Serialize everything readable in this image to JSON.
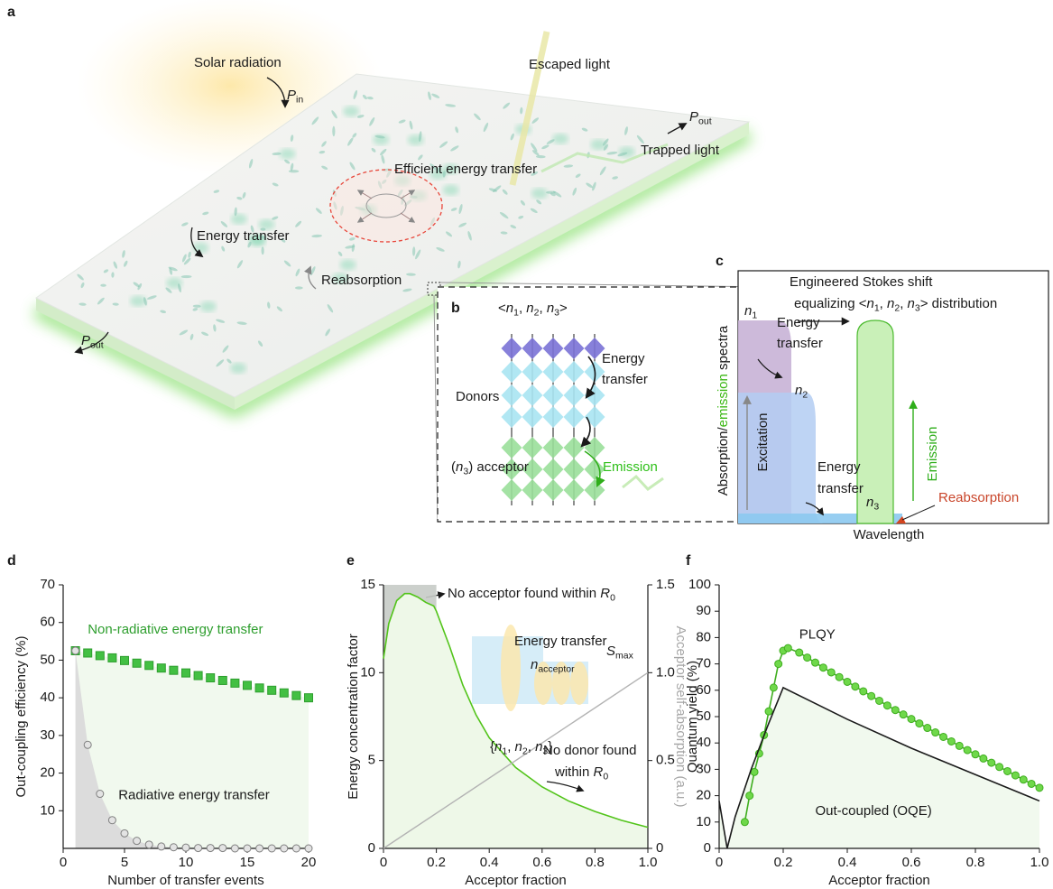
{
  "panel_a": {
    "label": "a",
    "solar_radiation": "Solar radiation",
    "p_in": [
      {
        "text": "P",
        "italic": true
      },
      {
        "text": "in",
        "sub": true
      }
    ],
    "escaped_light": "Escaped light",
    "p_out_right": [
      {
        "text": "P",
        "italic": true
      },
      {
        "text": "out",
        "sub": true
      }
    ],
    "trapped_light": "Trapped light",
    "efficient_energy_transfer": "Efficient energy transfer",
    "energy_transfer": "Energy transfer",
    "reabsorption": "Reabsorption",
    "p_out_left": [
      {
        "text": "P",
        "italic": true
      },
      {
        "text": "out",
        "sub": true
      }
    ]
  },
  "panel_b": {
    "label": "b",
    "title": [
      {
        "text": "<"
      },
      {
        "text": "n",
        "italic": true
      },
      {
        "text": "1",
        "sub": true
      },
      {
        "text": ", "
      },
      {
        "text": "n",
        "italic": true
      },
      {
        "text": "2",
        "sub": true
      },
      {
        "text": ", "
      },
      {
        "text": "n",
        "italic": true
      },
      {
        "text": "3",
        "sub": true
      },
      {
        "text": ">"
      }
    ],
    "donors": "Donors",
    "energy_transfer": [
      "Energy",
      "transfer"
    ],
    "acceptor": [
      {
        "text": "("
      },
      {
        "text": "n",
        "italic": true
      },
      {
        "text": "3",
        "sub": true
      },
      {
        "text": ") acceptor"
      }
    ],
    "emission": "Emission"
  },
  "panel_c": {
    "label": "c",
    "title_lines": [
      "Engineered Stokes shift",
      [
        {
          "text": "equalizing <"
        },
        {
          "text": "n",
          "italic": true
        },
        {
          "text": "1",
          "sub": true
        },
        {
          "text": ", "
        },
        {
          "text": "n",
          "italic": true
        },
        {
          "text": "2",
          "sub": true
        },
        {
          "text": ", "
        },
        {
          "text": "n",
          "italic": true
        },
        {
          "text": "3",
          "sub": true
        },
        {
          "text": "> distribution"
        }
      ]
    ],
    "y_label": [
      {
        "text": "Absorption/"
      },
      {
        "text": "emission",
        "color": "#3cb815"
      },
      {
        "text": " spectra"
      }
    ],
    "x_label": "Wavelength",
    "n1": [
      {
        "text": "n",
        "italic": true
      },
      {
        "text": "1",
        "sub": true
      }
    ],
    "n2": [
      {
        "text": "n",
        "italic": true
      },
      {
        "text": "2",
        "sub": true
      }
    ],
    "n3": [
      {
        "text": "n",
        "italic": true
      },
      {
        "text": "3",
        "sub": true
      }
    ],
    "energy_transfer_1": [
      "Energy",
      "transfer"
    ],
    "energy_transfer_2": [
      "Energy",
      "transfer"
    ],
    "excitation": "Excitation",
    "emission": "Emission",
    "reabsorption": "Reabsorption"
  },
  "chart_data": [
    {
      "type": "scatter",
      "panel_label": "d",
      "x_label": "Number of transfer events",
      "y_label": "Out-coupling efficiency (%)",
      "xlim": [
        0,
        20
      ],
      "xticks": [
        0,
        5,
        10,
        15,
        20
      ],
      "ylim": [
        0,
        70
      ],
      "yticks": [
        10,
        20,
        30,
        40,
        50,
        60,
        70
      ],
      "series": [
        {
          "name": "Non-radiative energy transfer",
          "color": "#2e9e2e",
          "marker_fill": "#43c043",
          "fill": "#f1f9ee",
          "marker": "square",
          "x": [
            1,
            2,
            3,
            4,
            5,
            6,
            7,
            8,
            9,
            10,
            11,
            12,
            13,
            14,
            15,
            16,
            17,
            18,
            19,
            20
          ],
          "values": [
            52.5,
            51.9,
            51.2,
            50.6,
            49.9,
            49.2,
            48.6,
            47.9,
            47.3,
            46.6,
            45.9,
            45.3,
            44.6,
            43.9,
            43.3,
            42.6,
            42.0,
            41.3,
            40.6,
            40.0
          ]
        },
        {
          "name": "Radiative energy transfer",
          "color": "#7f7f7f",
          "marker_fill": "#e3e3e3",
          "fill": "#dcdcdc",
          "marker": "circle",
          "x": [
            1,
            2,
            3,
            4,
            5,
            6,
            7,
            8,
            9,
            10,
            11,
            12,
            13,
            14,
            15,
            16,
            17,
            18,
            19,
            20
          ],
          "values": [
            52.5,
            27.5,
            14.5,
            7.5,
            4,
            2,
            1,
            0.5,
            0.3,
            0.2,
            0.1,
            0.1,
            0.1,
            0,
            0,
            0,
            0,
            0,
            0,
            0
          ]
        }
      ]
    },
    {
      "type": "line",
      "panel_label": "e",
      "x_label": "Acceptor fraction",
      "y_label": "Energy concentration factor",
      "y2_label": "Acceptor self-absorption (a.u.)",
      "xlim": [
        0,
        1
      ],
      "xticks": [
        0,
        0.2,
        0.4,
        0.6,
        0.8,
        {
          "value": 1,
          "label": "1.0"
        }
      ],
      "ylim": [
        0,
        15
      ],
      "yticks": [
        0,
        5,
        10,
        15
      ],
      "y2lim": [
        0,
        1.5
      ],
      "y2ticks": [
        0,
        0.5,
        {
          "value": 1,
          "label": "1.0"
        },
        1.5
      ],
      "series": [
        {
          "color": "#52c41a",
          "fill": "#eef8e8",
          "x": [
            0,
            0.02,
            0.05,
            0.08,
            0.1,
            0.13,
            0.16,
            0.19,
            0.2,
            0.25,
            0.3,
            0.35,
            0.4,
            0.5,
            0.6,
            0.7,
            0.8,
            0.9,
            1.0
          ],
          "values": [
            10.8,
            12.8,
            14.1,
            14.5,
            14.5,
            14.3,
            14.0,
            13.8,
            13.5,
            11.5,
            9.3,
            7.6,
            6.3,
            4.6,
            3.5,
            2.7,
            2.1,
            1.6,
            1.2
          ]
        },
        {
          "color": "#b3b3b3",
          "axis": "y2",
          "x": [
            0,
            1
          ],
          "values": [
            0,
            1
          ]
        }
      ],
      "annotations": [
        [
          {
            "text": "No acceptor found within "
          },
          {
            "text": "R",
            "italic": true
          },
          {
            "text": "0",
            "sub": true
          }
        ],
        "Energy transfer",
        [
          {
            "text": "n",
            "italic": true
          },
          {
            "text": "acceptor",
            "sub": true
          }
        ],
        [
          {
            "text": "{"
          },
          {
            "text": "n",
            "italic": true
          },
          {
            "text": "1",
            "sub": true
          },
          {
            "text": ", "
          },
          {
            "text": "n",
            "italic": true
          },
          {
            "text": "2",
            "sub": true
          },
          {
            "text": ", "
          },
          {
            "text": "n",
            "italic": true
          },
          {
            "text": "3",
            "sub": true
          },
          {
            "text": "}"
          }
        ],
        [
          {
            "text": "S",
            "italic": true
          },
          {
            "text": "max",
            "sub": true
          }
        ],
        "No donor found",
        [
          {
            "text": "within "
          },
          {
            "text": "R",
            "italic": true
          },
          {
            "text": "0",
            "sub": true
          }
        ]
      ]
    },
    {
      "type": "line",
      "panel_label": "f",
      "x_label": "Acceptor fraction",
      "y_label": "Quantum yield (%)",
      "xlim": [
        0,
        1
      ],
      "xticks": [
        0,
        0.2,
        0.4,
        0.6,
        0.8,
        {
          "value": 1,
          "label": "1.0"
        }
      ],
      "ylim": [
        0,
        100
      ],
      "yticks": [
        0,
        10,
        20,
        30,
        40,
        50,
        60,
        70,
        80,
        90,
        100
      ],
      "series": [
        {
          "name": "PLQY",
          "color": "#3fae1f",
          "marker_fill": "#6fd84a",
          "marker": "circle",
          "x": [
            0.08,
            0.095,
            0.11,
            0.125,
            0.14,
            0.155,
            0.17,
            0.185,
            0.2,
            0.215,
            0.25,
            0.275,
            0.3,
            0.325,
            0.35,
            0.375,
            0.4,
            0.425,
            0.45,
            0.475,
            0.5,
            0.525,
            0.55,
            0.575,
            0.6,
            0.625,
            0.65,
            0.675,
            0.7,
            0.725,
            0.75,
            0.775,
            0.8,
            0.825,
            0.85,
            0.875,
            0.9,
            0.925,
            0.95,
            0.975,
            1.0
          ],
          "values": [
            10,
            20,
            29,
            36,
            43,
            52,
            61,
            70,
            75,
            76,
            74.3,
            72.4,
            70.5,
            68.6,
            66.8,
            65,
            63.2,
            61.4,
            59.6,
            57.8,
            56,
            54.2,
            52.5,
            50.8,
            49.1,
            47.4,
            45.7,
            44,
            42.3,
            40.6,
            38.9,
            37.3,
            35.7,
            34.1,
            32.5,
            30.9,
            29.3,
            27.7,
            26.1,
            24.5,
            23
          ]
        },
        {
          "name": "Out-coupled (OQE)",
          "color": "#1a1a1a",
          "fill": "#f1f9ee",
          "x": [
            0,
            0.025,
            0.05,
            0.1,
            0.15,
            0.2,
            0.4,
            0.6,
            0.8,
            1.0
          ],
          "values": [
            18,
            0,
            12,
            30,
            46,
            61,
            49,
            38,
            28,
            18
          ]
        }
      ]
    }
  ]
}
